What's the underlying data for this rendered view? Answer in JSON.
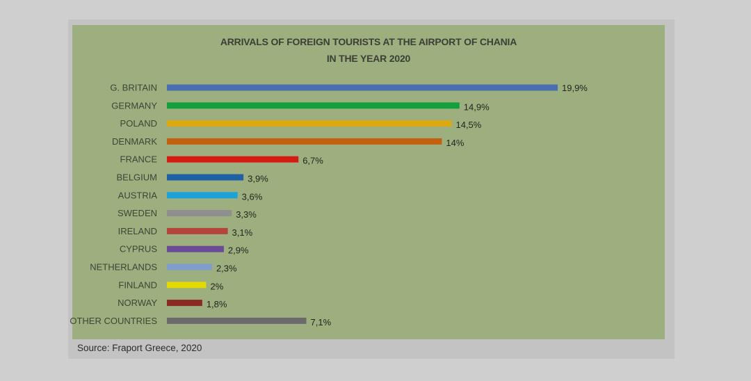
{
  "chart_data": {
    "type": "bar",
    "orientation": "horizontal",
    "title": "ARRIVALS OF FOREIGN TOURISTS AT THE AIRPORT OF CHANIA",
    "subtitle": "IN THE YEAR 2020",
    "categories": [
      "G. BRITAIN",
      "GERMANY",
      "POLAND",
      "DENMARK",
      "FRANCE",
      "BELGIUM",
      "AUSTRIA",
      "SWEDEN",
      "IRELAND",
      "CYPRUS",
      "NETHERLANDS",
      "FINLAND",
      "NORWAY",
      "OTHER COUNTRIES"
    ],
    "values": [
      19.9,
      14.9,
      14.5,
      14,
      6.7,
      3.9,
      3.6,
      3.3,
      3.1,
      2.9,
      2.3,
      2,
      1.8,
      7.1
    ],
    "value_labels": [
      "19,9%",
      "14,9%",
      "14,5%",
      "14%",
      "6,7%",
      "3,9%",
      "3,6%",
      "3,3%",
      "3,1%",
      "2,9%",
      "2,3%",
      "2%",
      "1,8%",
      "7,1%"
    ],
    "colors": [
      "#4a6fb0",
      "#13a03c",
      "#dca911",
      "#c1610f",
      "#d51b14",
      "#1f5fa6",
      "#1aa3d8",
      "#8f8f8f",
      "#b5453a",
      "#6a4b97",
      "#7f9dcb",
      "#e2da00",
      "#8a2a22",
      "#6b6b6b"
    ],
    "xlabel": "",
    "ylabel": "",
    "xlim": [
      0,
      20
    ],
    "grid": false,
    "legend": "none",
    "background": "#9dae7f"
  },
  "source": "Source: Fraport Greece, 2020"
}
